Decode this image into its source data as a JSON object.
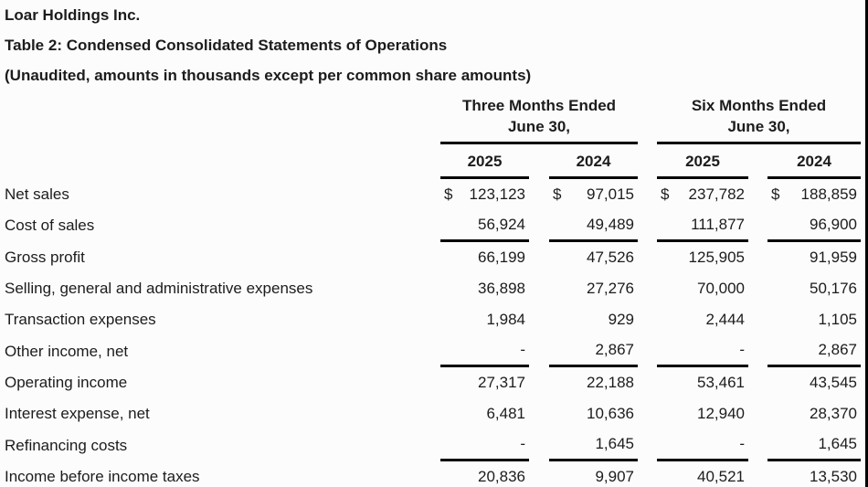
{
  "header": {
    "company": "Loar Holdings Inc.",
    "table_title": "Table 2: Condensed Consolidated Statements of Operations",
    "subtitle": "(Unaudited, amounts in thousands except per common share amounts)"
  },
  "table": {
    "currency_symbol": "$",
    "column_groups": [
      {
        "title": "Three Months Ended",
        "subtitle": "June 30,",
        "years": [
          "2025",
          "2024"
        ]
      },
      {
        "title": "Six Months Ended",
        "subtitle": "June 30,",
        "years": [
          "2025",
          "2024"
        ]
      }
    ],
    "rows": [
      {
        "label": "Net sales",
        "dollar_sign": true,
        "underline_below": false,
        "values": [
          "123,123",
          "97,015",
          "237,782",
          "188,859"
        ]
      },
      {
        "label": "Cost of sales",
        "dollar_sign": false,
        "underline_below": true,
        "values": [
          "56,924",
          "49,489",
          "111,877",
          "96,900"
        ]
      },
      {
        "label": "Gross profit",
        "dollar_sign": false,
        "underline_below": false,
        "values": [
          "66,199",
          "47,526",
          "125,905",
          "91,959"
        ]
      },
      {
        "label": "Selling, general and administrative expenses",
        "dollar_sign": false,
        "underline_below": false,
        "values": [
          "36,898",
          "27,276",
          "70,000",
          "50,176"
        ]
      },
      {
        "label": "Transaction expenses",
        "dollar_sign": false,
        "underline_below": false,
        "values": [
          "1,984",
          "929",
          "2,444",
          "1,105"
        ]
      },
      {
        "label": "Other income, net",
        "dollar_sign": false,
        "underline_below": true,
        "values": [
          "-",
          "2,867",
          "-",
          "2,867"
        ]
      },
      {
        "label": "Operating income",
        "dollar_sign": false,
        "underline_below": false,
        "values": [
          "27,317",
          "22,188",
          "53,461",
          "43,545"
        ]
      },
      {
        "label": "Interest expense, net",
        "dollar_sign": false,
        "underline_below": false,
        "values": [
          "6,481",
          "10,636",
          "12,940",
          "28,370"
        ]
      },
      {
        "label": "Refinancing costs",
        "dollar_sign": false,
        "underline_below": true,
        "values": [
          "-",
          "1,645",
          "-",
          "1,645"
        ]
      },
      {
        "label": "Income before income taxes",
        "dollar_sign": false,
        "underline_below": false,
        "values": [
          "20,836",
          "9,907",
          "40,521",
          "13,530"
        ]
      }
    ]
  },
  "colors": {
    "text": "#1c1c1c",
    "rule": "#000000",
    "background": "#fcfcfc",
    "edge_border": "#000000"
  }
}
